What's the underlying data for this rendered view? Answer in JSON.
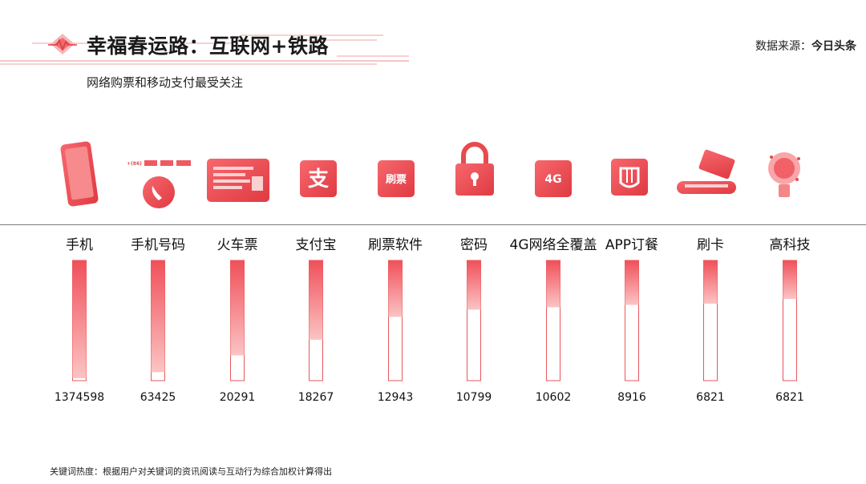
{
  "header": {
    "title": "幸福春运路：互联网+铁路",
    "subtitle": "网络购票和移动支付最受关注",
    "source_label": "数据来源：",
    "source_name": "今日头条"
  },
  "footnote": "关键词热度：根据用户对关键词的资讯阅读与互动行为综合加权计算得出",
  "colors": {
    "bar_top": "#f0505a",
    "bar_bottom": "#fbc4c4",
    "bar_border": "#e9575c",
    "accent": "#e84a4f"
  },
  "icons": {
    "phone_prefix": "+(86)",
    "shuapiao_text": "刷票",
    "fourg_text": "4G",
    "alipay_glyph": "支"
  },
  "chart_data": {
    "type": "bar",
    "categories": [
      "手机",
      "手机号码",
      "火车票",
      "支付宝",
      "刷票软件",
      "密码",
      "4G网络全覆盖",
      "APP订餐",
      "刷卡",
      "高科技"
    ],
    "values": [
      1374598,
      63425,
      20291,
      18267,
      12943,
      10799,
      10602,
      8916,
      6821,
      6821
    ],
    "fill_fraction": [
      0.98,
      0.93,
      0.79,
      0.66,
      0.47,
      0.41,
      0.39,
      0.37,
      0.36,
      0.32
    ],
    "icon_names": [
      "smartphone-icon",
      "phone-call-icon",
      "train-ticket-icon",
      "alipay-icon",
      "ticket-app-icon",
      "padlock-icon",
      "4g-network-icon",
      "food-app-icon",
      "card-reader-icon",
      "lightbulb-icon"
    ]
  }
}
